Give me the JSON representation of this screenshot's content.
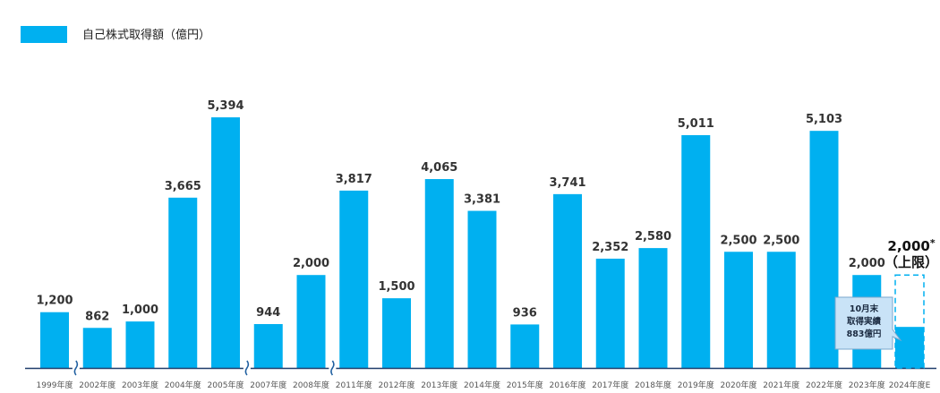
{
  "colors": {
    "bar": "#00b0f0",
    "axis": "#1f3d6b",
    "break": "#1f5fa0",
    "callout_fill": "#c9e3f7",
    "callout_border": "#7aa7cc"
  },
  "chart_data": {
    "type": "bar",
    "legend": {
      "label": "自己株式取得額（億円）",
      "position": "top-left"
    },
    "categories": [
      "1999年度",
      "2002年度",
      "2003年度",
      "2004年度",
      "2005年度",
      "2007年度",
      "2008年度",
      "2011年度",
      "2012年度",
      "2013年度",
      "2014年度",
      "2015年度",
      "2016年度",
      "2017年度",
      "2018年度",
      "2019年度",
      "2020年度",
      "2021年度",
      "2022年度",
      "2023年度",
      "2024年度E"
    ],
    "values": [
      1200,
      862,
      1000,
      3665,
      5394,
      944,
      2000,
      3817,
      1500,
      4065,
      3381,
      936,
      3741,
      2352,
      2580,
      5011,
      2500,
      2500,
      5103,
      2000,
      883
    ],
    "value_labels": [
      "1,200",
      "862",
      "1,000",
      "3,665",
      "5,394",
      "944",
      "2,000",
      "3,817",
      "1,500",
      "4,065",
      "3,381",
      "936",
      "3,741",
      "2,352",
      "2,580",
      "5,011",
      "2,500",
      "2,500",
      "5,103",
      "2,000",
      ""
    ],
    "axis_breaks_after": [
      "1999年度",
      "2005年度",
      "2008年度"
    ],
    "target": {
      "category": "2024年度E",
      "value": 2000,
      "label_line1": "2,000",
      "asterisk": "*",
      "label_line2": "（上限）"
    },
    "callout": {
      "line1": "10月末",
      "line2": "取得実績",
      "line3": "883億円",
      "value": 883
    },
    "ylim": [
      0,
      5800
    ],
    "grid": false
  }
}
